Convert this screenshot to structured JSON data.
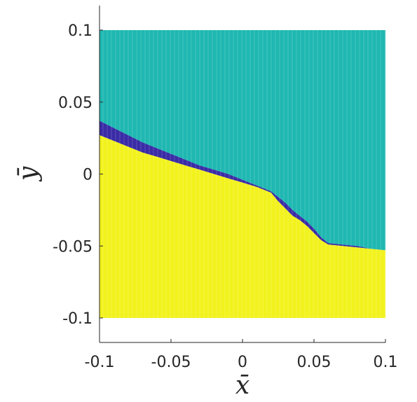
{
  "chart_data": {
    "type": "heatmap",
    "title": "",
    "xlabel": "x̄",
    "ylabel": "ȳ",
    "xlim": [
      -0.1,
      0.1
    ],
    "ylim": [
      -0.1,
      0.1
    ],
    "x_ticks": [
      -0.1,
      -0.05,
      0,
      0.05,
      0.1
    ],
    "y_ticks": [
      -0.1,
      -0.05,
      0,
      0.05,
      0.1
    ],
    "x_tick_labels": [
      "-0.1",
      "-0.05",
      "0",
      "0.05",
      "0.1"
    ],
    "y_tick_labels": [
      "-0.1",
      "-0.05",
      "0",
      "0.05",
      "0.1"
    ],
    "grid": false,
    "legend": "none",
    "colors": {
      "upper_region": "#1fb7b1",
      "boundary_band": "#3a2ba6",
      "lower_region": "#f2f21e",
      "axis": "#262626"
    },
    "boundary_upper": {
      "x": [
        -0.1,
        -0.09,
        -0.08,
        -0.07,
        -0.06,
        -0.05,
        -0.04,
        -0.03,
        -0.02,
        -0.01,
        0.0,
        0.01,
        0.02,
        0.025,
        0.03,
        0.035,
        0.04,
        0.045,
        0.05,
        0.055,
        0.06,
        0.07,
        0.08,
        0.09,
        0.1
      ],
      "y": [
        0.037,
        0.032,
        0.027,
        0.022,
        0.018,
        0.014,
        0.01,
        0.006,
        0.003,
        0.0,
        -0.004,
        -0.008,
        -0.012,
        -0.016,
        -0.02,
        -0.025,
        -0.029,
        -0.033,
        -0.038,
        -0.044,
        -0.048,
        -0.049,
        -0.05,
        -0.052,
        -0.053
      ]
    },
    "boundary_lower": {
      "x": [
        -0.1,
        -0.09,
        -0.08,
        -0.07,
        -0.06,
        -0.05,
        -0.04,
        -0.03,
        -0.02,
        -0.01,
        0.0,
        0.01,
        0.02,
        0.025,
        0.03,
        0.035,
        0.04,
        0.045,
        0.05,
        0.055,
        0.06,
        0.07,
        0.08,
        0.09,
        0.1
      ],
      "y": [
        0.027,
        0.023,
        0.019,
        0.015,
        0.012,
        0.009,
        0.006,
        0.003,
        0.0,
        -0.003,
        -0.006,
        -0.009,
        -0.013,
        -0.019,
        -0.024,
        -0.029,
        -0.032,
        -0.036,
        -0.041,
        -0.046,
        -0.049,
        -0.05,
        -0.051,
        -0.052,
        -0.053
      ]
    }
  }
}
